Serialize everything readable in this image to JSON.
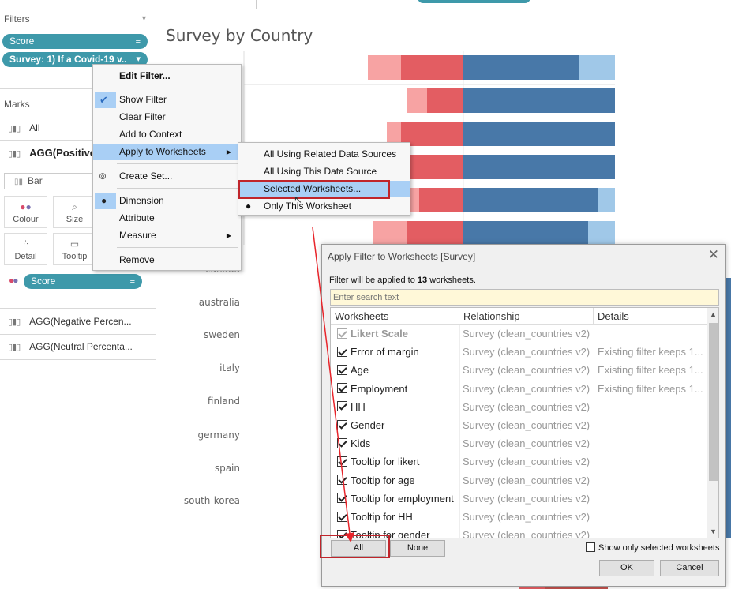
{
  "left_panel": {
    "filters_title": "Filters",
    "filter_pills": [
      {
        "label": "Score",
        "right_icon": "≡"
      },
      {
        "label": "Survey: 1) If a Covid-19 v..",
        "right_icon": "▾"
      }
    ],
    "marks_title": "Marks",
    "marks_all": "All",
    "marks_agg_positive": "AGG(Positive",
    "mark_type": "Bar",
    "mark_buttons": [
      {
        "label": "Colour",
        "icon": "colour-dots-icon"
      },
      {
        "label": "Size",
        "icon": "size-icon"
      },
      {
        "label": "Detail",
        "icon": "detail-dots-icon"
      },
      {
        "label": "Tooltip",
        "icon": "tooltip-icon"
      }
    ],
    "color_pill": {
      "label": "Score",
      "right_icon": "≡"
    },
    "marks_measures": [
      "AGG(Negative Percen...",
      "AGG(Neutral Percenta..."
    ]
  },
  "chart": {
    "title": "Survey by Country",
    "countries": [
      "australia",
      "sweden",
      "italy",
      "finland",
      "germany",
      "spain",
      "south-korea"
    ],
    "partial_label": "canada",
    "colors": {
      "light_red": "#f7a3a3",
      "red": "#e35d62",
      "dark_blue": "#4878a8",
      "light_blue": "#a0c8e8"
    }
  },
  "context_menu": {
    "items": [
      {
        "label": "Edit Filter...",
        "bold": true
      },
      {
        "label": "Show Filter",
        "checked": true
      },
      {
        "label": "Clear Filter"
      },
      {
        "label": "Add to Context"
      },
      {
        "label": "Apply to Worksheets",
        "submenu": true,
        "highlighted": true
      },
      {
        "label": "Create Set...",
        "icon": "set-icon"
      },
      {
        "label": "Dimension",
        "selected": true
      },
      {
        "label": "Attribute"
      },
      {
        "label": "Measure",
        "submenu": true
      },
      {
        "label": "Remove"
      }
    ],
    "submenu": [
      {
        "label": "All Using Related Data Sources"
      },
      {
        "label": "All Using This Data Source"
      },
      {
        "label": "Selected Worksheets...",
        "highlighted": true
      },
      {
        "label": "Only This Worksheet",
        "selected": true
      }
    ]
  },
  "dialog": {
    "title": "Apply Filter to Worksheets [Survey]",
    "info_prefix": "Filter will be applied to ",
    "info_count": "13",
    "info_suffix": " worksheets.",
    "search_placeholder": "Enter search text",
    "columns": [
      "Worksheets",
      "Relationship",
      "Details"
    ],
    "rows": [
      {
        "name": "Likert Scale",
        "relationship": "Survey (clean_countries v2)",
        "details": "",
        "disabled": true
      },
      {
        "name": "Error of margin",
        "relationship": "Survey (clean_countries v2)",
        "details": "Existing filter keeps 1..."
      },
      {
        "name": "Age",
        "relationship": "Survey (clean_countries v2)",
        "details": "Existing filter keeps 1..."
      },
      {
        "name": "Employment",
        "relationship": "Survey (clean_countries v2)",
        "details": "Existing filter keeps 1..."
      },
      {
        "name": "HH",
        "relationship": "Survey (clean_countries v2)",
        "details": ""
      },
      {
        "name": "Gender",
        "relationship": "Survey (clean_countries v2)",
        "details": ""
      },
      {
        "name": "Kids",
        "relationship": "Survey (clean_countries v2)",
        "details": ""
      },
      {
        "name": "Tooltip for likert",
        "relationship": "Survey (clean_countries v2)",
        "details": ""
      },
      {
        "name": "Tooltip for age",
        "relationship": "Survey (clean_countries v2)",
        "details": ""
      },
      {
        "name": "Tooltip for employment",
        "relationship": "Survey (clean_countries v2)",
        "details": ""
      },
      {
        "name": "Tooltip for HH",
        "relationship": "Survey (clean_countries v2)",
        "details": ""
      },
      {
        "name": "Tooltip for gender",
        "relationship": "Survey (clean_countries v2)",
        "details": ""
      }
    ],
    "all_label": "All",
    "none_label": "None",
    "show_only_label": "Show only selected worksheets",
    "ok_label": "OK",
    "cancel_label": "Cancel"
  }
}
